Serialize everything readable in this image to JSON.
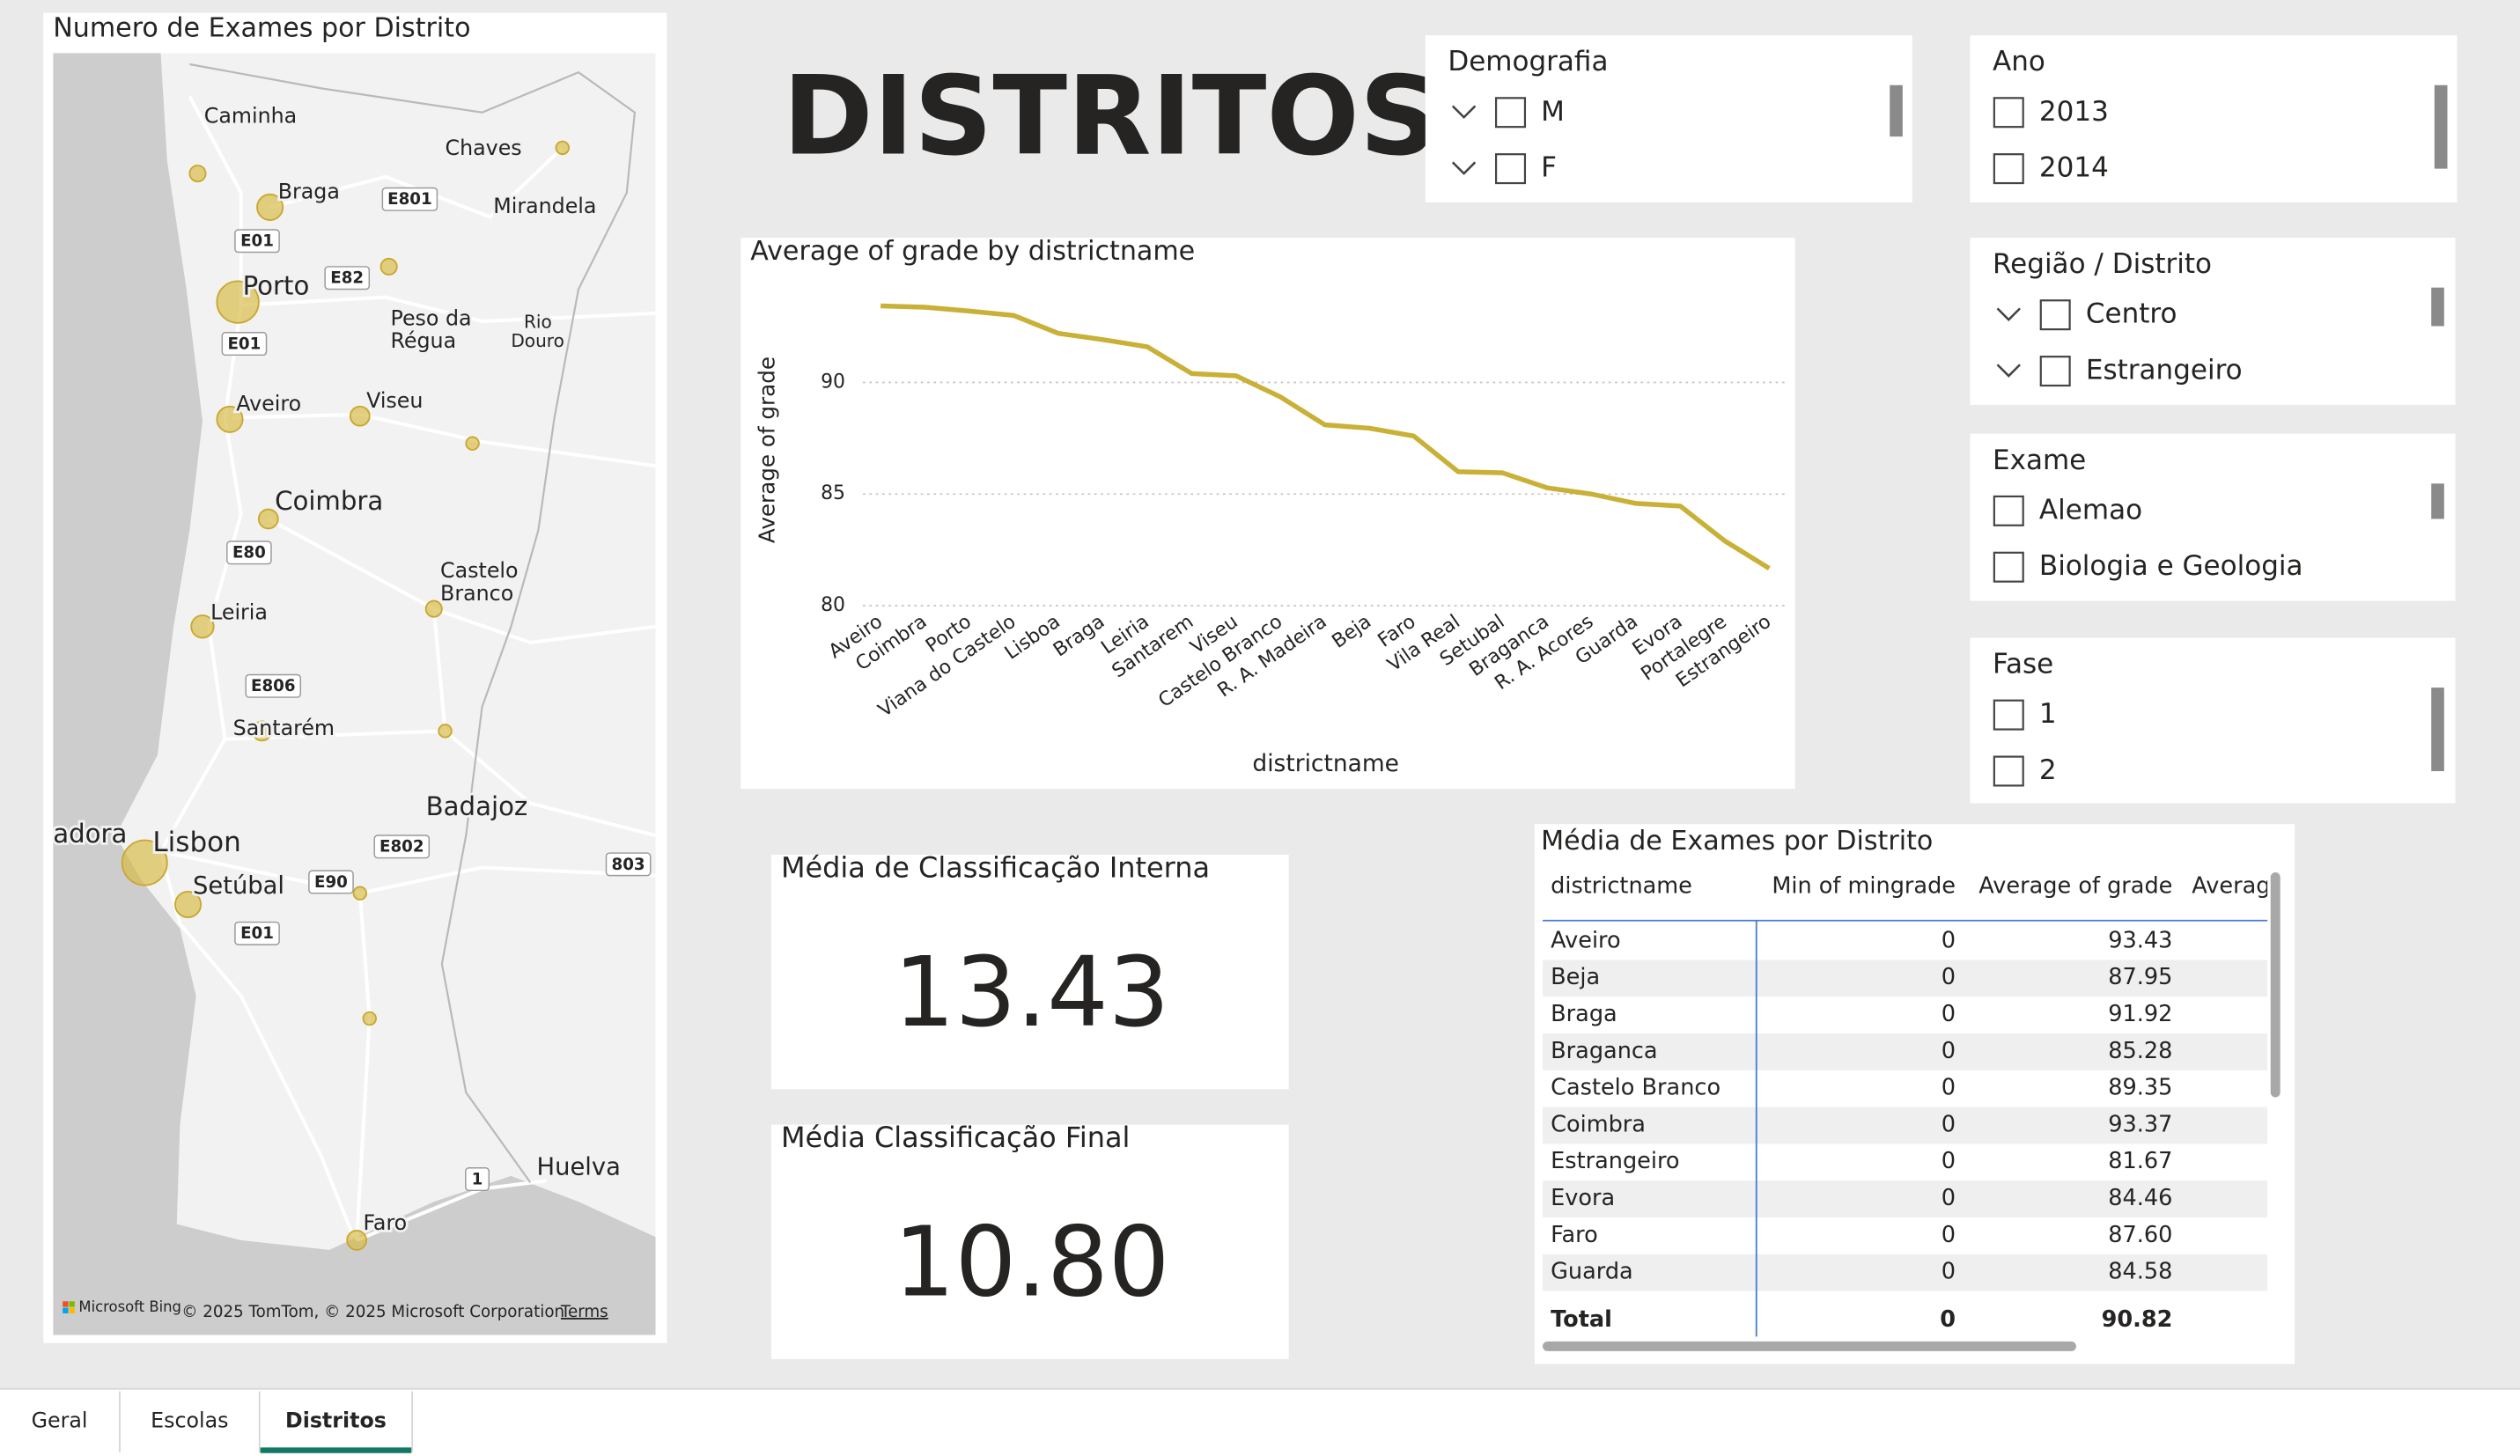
{
  "page": {
    "title": "DISTRITOS"
  },
  "map": {
    "title": "Numero de Exames por Distrito",
    "places": [
      "Caminha",
      "Chaves",
      "Braga",
      "Mirandela",
      "Porto",
      "Peso da",
      "Régua",
      "Rio",
      "Douro",
      "Aveiro",
      "Viseu",
      "Coimbra",
      "Castelo",
      "Branco",
      "Leiria",
      "Santarém",
      "Badajoz",
      "adora",
      "Lisbon",
      "Setúbal",
      "Huelva",
      "Faro"
    ],
    "roads": [
      "E801",
      "E01",
      "E82",
      "E01",
      "E80",
      "E806",
      "E802",
      "803",
      "E90",
      "E01",
      "1"
    ],
    "brand": "Microsoft Bing",
    "attribution": "© 2025 TomTom, © 2025 Microsoft Corporation",
    "terms": "Terms"
  },
  "chart_data": {
    "type": "line",
    "title": "Average of grade by districtname",
    "x_label": "districtname",
    "y_label": "Average of grade",
    "categories": [
      "Aveiro",
      "Coimbra",
      "Porto",
      "Viana do Castelo",
      "Lisboa",
      "Braga",
      "Leiria",
      "Santarem",
      "Viseu",
      "Castelo Branco",
      "R. A. Madeira",
      "Beja",
      "Faro",
      "Vila Real",
      "Setubal",
      "Braganca",
      "R. A. Acores",
      "Guarda",
      "Evora",
      "Portalegre",
      "Estrangeiro"
    ],
    "values": [
      93.43,
      93.37,
      93.2,
      93.0,
      92.2,
      91.92,
      91.6,
      90.4,
      90.3,
      89.35,
      88.1,
      87.95,
      87.6,
      86.0,
      85.95,
      85.28,
      85.0,
      84.58,
      84.46,
      82.9,
      81.67
    ],
    "color": "#c9b037",
    "ylim": [
      80,
      95
    ],
    "yticks": [
      80,
      85,
      90
    ],
    "grid": true
  },
  "cards": [
    {
      "title": "Média de Classificação Interna",
      "value": "13.43"
    },
    {
      "title": "Média Classificação Final",
      "value": "10.80"
    }
  ],
  "slicers": [
    {
      "title": "Demografia",
      "items": [
        "M",
        "F"
      ],
      "expandable": true
    },
    {
      "title": "Ano",
      "items": [
        "2013",
        "2014"
      ],
      "expandable": false
    },
    {
      "title": "Região / Distrito",
      "items": [
        "Centro",
        "Estrangeiro"
      ],
      "expandable": true
    },
    {
      "title": "Exame",
      "items": [
        "Alemao",
        "Biologia e Geologia"
      ],
      "expandable": false
    },
    {
      "title": "Fase",
      "items": [
        "1",
        "2"
      ],
      "expandable": false
    }
  ],
  "table": {
    "title": "Média de Exames por Distrito",
    "columns": [
      "districtname",
      "Min of mingrade",
      "Average of grade",
      "Averag"
    ],
    "rows": [
      [
        "Aveiro",
        "0",
        "93.43"
      ],
      [
        "Beja",
        "0",
        "87.95"
      ],
      [
        "Braga",
        "0",
        "91.92"
      ],
      [
        "Braganca",
        "0",
        "85.28"
      ],
      [
        "Castelo Branco",
        "0",
        "89.35"
      ],
      [
        "Coimbra",
        "0",
        "93.37"
      ],
      [
        "Estrangeiro",
        "0",
        "81.67"
      ],
      [
        "Evora",
        "0",
        "84.46"
      ],
      [
        "Faro",
        "0",
        "87.60"
      ],
      [
        "Guarda",
        "0",
        "84.58"
      ]
    ],
    "total": [
      "Total",
      "0",
      "90.82"
    ]
  },
  "tabs": {
    "items": [
      "Geral",
      "Escolas",
      "Distritos"
    ],
    "active": 2
  }
}
